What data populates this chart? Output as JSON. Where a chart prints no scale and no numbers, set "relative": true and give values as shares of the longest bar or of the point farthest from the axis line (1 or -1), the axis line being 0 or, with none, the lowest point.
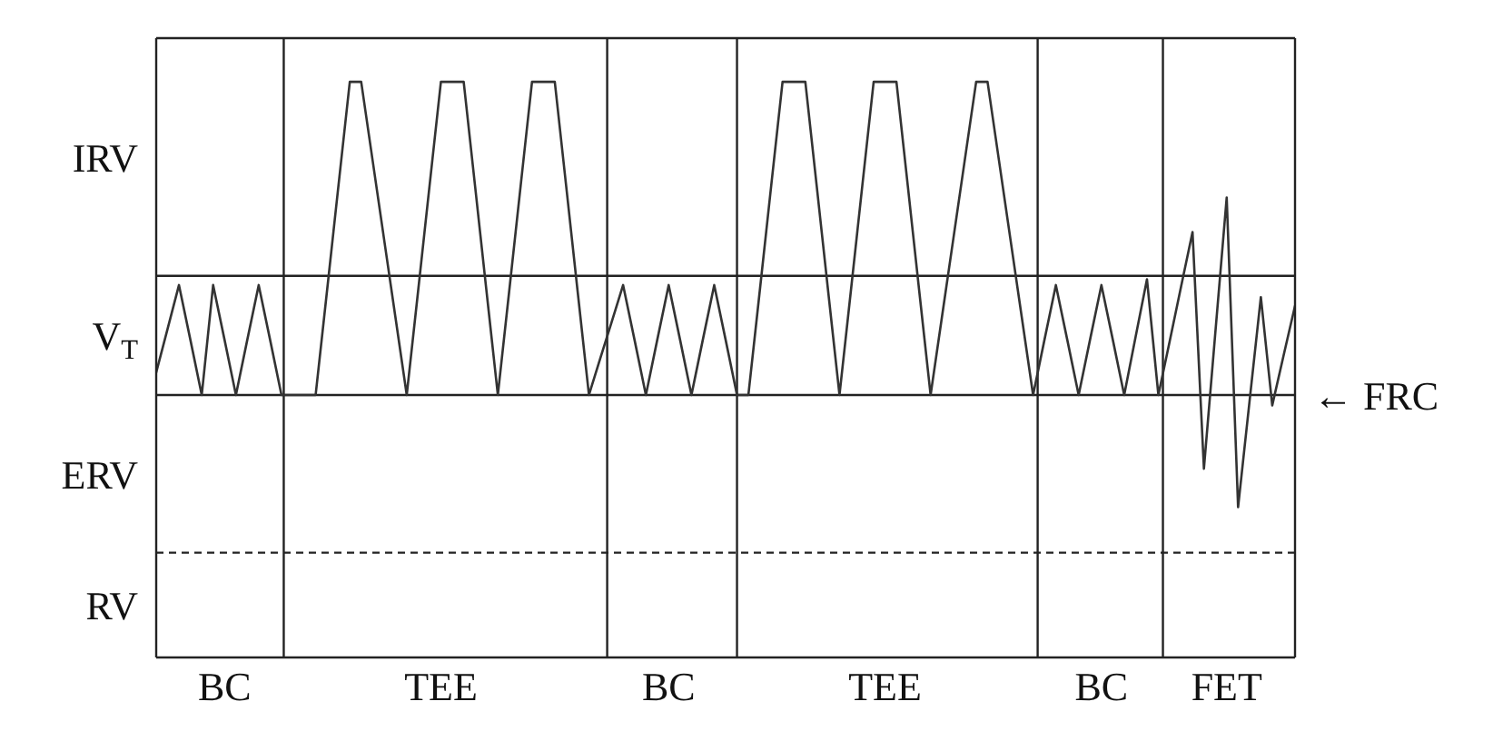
{
  "chart_data": {
    "type": "line",
    "relative": true,
    "tick_labels": "x",
    "marker": "none",
    "line_style": "solid",
    "categories": [
      null,
      null,
      null,
      null,
      null,
      null,
      "BC",
      null,
      null,
      null,
      null,
      null,
      null,
      null,
      null,
      null,
      null,
      null,
      null,
      null,
      null,
      null,
      null,
      null,
      null,
      "TEE",
      null,
      null,
      null,
      null,
      null,
      null,
      null,
      null,
      null,
      null,
      null,
      null,
      null,
      null,
      null,
      null,
      null,
      null,
      null,
      "BC",
      null,
      null,
      null,
      null,
      null,
      null,
      null,
      null,
      null,
      null,
      null,
      null,
      null,
      null,
      null,
      null,
      null,
      null,
      "TEE",
      null,
      null,
      null,
      null,
      null,
      null,
      null,
      null,
      null,
      null,
      null,
      null,
      null,
      null,
      null,
      null,
      null,
      null,
      "BC",
      null,
      null,
      null,
      null,
      null,
      null,
      null,
      null,
      null,
      null,
      "FET",
      null,
      null,
      null,
      null,
      null,
      null
    ],
    "series": [
      {
        "color": "#333333",
        "values": [
          0.495,
          0.571,
          0.647,
          0.552,
          0.456,
          0.647,
          0.552,
          0.456,
          0.552,
          0.647,
          0.552,
          0.456,
          0.456,
          0.456,
          0.456,
          0.637,
          0.819,
          1,
          1,
          0.864,
          0.728,
          0.592,
          0.456,
          0.637,
          0.819,
          1,
          1,
          1,
          0.819,
          0.637,
          0.456,
          0.637,
          0.819,
          1,
          1,
          1,
          0.819,
          0.637,
          0.456,
          0.52,
          0.583,
          0.647,
          0.552,
          0.456,
          0.552,
          0.647,
          0.552,
          0.456,
          0.552,
          0.647,
          0.552,
          0.456,
          0.456,
          0.637,
          0.819,
          1,
          1,
          1,
          0.819,
          0.637,
          0.456,
          0.637,
          0.819,
          1,
          1,
          1,
          0.819,
          0.637,
          0.456,
          0.592,
          0.728,
          0.864,
          1,
          1,
          0.864,
          0.728,
          0.592,
          0.456,
          0.552,
          0.647,
          0.552,
          0.456,
          0.552,
          0.647,
          0.552,
          0.456,
          0.557,
          0.657,
          0.456,
          0.55,
          0.645,
          0.739,
          0.328,
          0.564,
          0.799,
          0.261,
          0.444,
          0.626,
          0.438,
          0.525,
          0.611
        ]
      }
    ],
    "annotations": [
      "IRV",
      "V$_{T}$",
      "ERV",
      "RV"
    ],
    "ref_lines": [
      {
        "axis": "y",
        "value": 0.663,
        "label": null,
        "line_style": "solid"
      },
      {
        "axis": "y",
        "value": 0.456,
        "label": "← FRC",
        "line_style": "solid"
      },
      {
        "axis": "y",
        "value": 0.182,
        "label": null,
        "line_style": "dashed"
      }
    ]
  }
}
